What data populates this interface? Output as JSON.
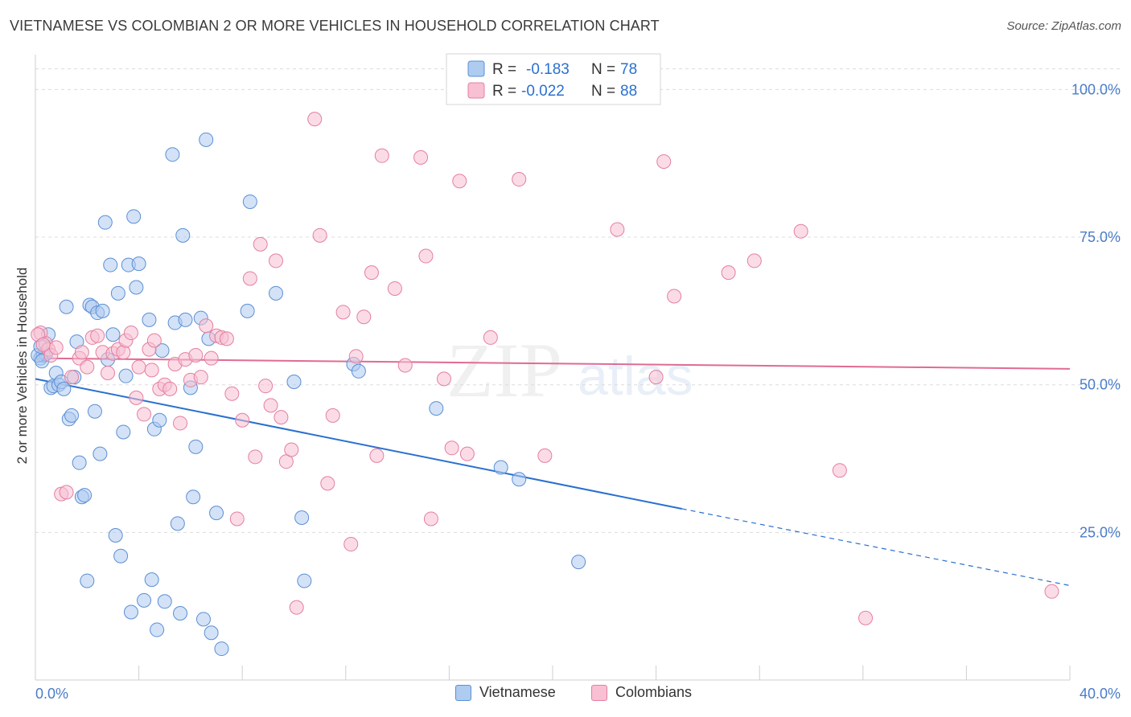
{
  "title": "VIETNAMESE VS COLOMBIAN 2 OR MORE VEHICLES IN HOUSEHOLD CORRELATION CHART",
  "source": "Source: ZipAtlas.com",
  "watermark": {
    "zip": "ZIP",
    "atlas": "atlas"
  },
  "colors": {
    "viet_fill": "#aecbf0",
    "viet_stroke": "#5b8fd4",
    "viet_line": "#2a70cf",
    "col_fill": "#f8c0d2",
    "col_stroke": "#e47fa0",
    "col_line": "#e06b93",
    "r_value": "#2a70cf",
    "grid": "#dcdcdc",
    "axis_text": "#4a7cc8"
  },
  "legend": {
    "rows": [
      {
        "r_label": "R =",
        "r_value": "-0.183",
        "n_label": "N =",
        "n_value": "78"
      },
      {
        "r_label": "R =",
        "r_value": "-0.022",
        "n_label": "N =",
        "n_value": "88"
      }
    ]
  },
  "bottom_legend": [
    "Vietnamese",
    "Colombians"
  ],
  "chart_data": {
    "type": "scatter",
    "title": "VIETNAMESE VS COLOMBIAN 2 OR MORE VEHICLES IN HOUSEHOLD CORRELATION CHART",
    "xlabel": "",
    "ylabel": "2 or more Vehicles in Household",
    "xlim": [
      0,
      40
    ],
    "ylim": [
      0,
      104
    ],
    "x_tick_labels": [
      "0.0%",
      "40.0%"
    ],
    "y_ticks": [
      25,
      50,
      75,
      100
    ],
    "y_tick_labels": [
      "25.0%",
      "50.0%",
      "75.0%",
      "100.0%"
    ],
    "series": [
      {
        "name": "Vietnamese",
        "r": -0.183,
        "n": 78,
        "trend": {
          "x0": 0,
          "y0": 51,
          "x1": 25.0,
          "y1": 29.0,
          "dash_to_x": 40,
          "dash_to_y": 16
        },
        "points": [
          [
            0.2,
            54.5
          ],
          [
            0.3,
            55.0
          ],
          [
            0.4,
            55.2
          ],
          [
            0.5,
            58.5
          ],
          [
            0.6,
            49.5
          ],
          [
            0.7,
            49.8
          ],
          [
            0.8,
            52.0
          ],
          [
            0.9,
            50.0
          ],
          [
            1.0,
            50.5
          ],
          [
            1.1,
            49.3
          ],
          [
            1.2,
            63.2
          ],
          [
            1.3,
            44.2
          ],
          [
            1.4,
            44.8
          ],
          [
            1.5,
            51.3
          ],
          [
            1.6,
            57.3
          ],
          [
            1.7,
            36.8
          ],
          [
            1.8,
            31.0
          ],
          [
            1.9,
            31.3
          ],
          [
            2.0,
            16.8
          ],
          [
            2.1,
            63.5
          ],
          [
            2.2,
            63.2
          ],
          [
            2.3,
            45.5
          ],
          [
            2.4,
            62.2
          ],
          [
            2.5,
            38.3
          ],
          [
            2.6,
            62.5
          ],
          [
            2.7,
            77.5
          ],
          [
            2.8,
            54.3
          ],
          [
            2.9,
            70.3
          ],
          [
            3.0,
            58.5
          ],
          [
            3.1,
            24.5
          ],
          [
            3.2,
            65.5
          ],
          [
            3.3,
            21.0
          ],
          [
            3.4,
            42.0
          ],
          [
            3.5,
            51.5
          ],
          [
            3.6,
            70.3
          ],
          [
            3.7,
            11.5
          ],
          [
            3.8,
            78.5
          ],
          [
            3.9,
            66.5
          ],
          [
            4.0,
            70.5
          ],
          [
            4.2,
            13.5
          ],
          [
            4.4,
            61.0
          ],
          [
            4.5,
            17.0
          ],
          [
            4.6,
            42.5
          ],
          [
            4.7,
            8.5
          ],
          [
            4.8,
            44.0
          ],
          [
            4.9,
            55.8
          ],
          [
            5.0,
            13.3
          ],
          [
            5.3,
            89.0
          ],
          [
            5.4,
            60.5
          ],
          [
            5.5,
            26.5
          ],
          [
            5.6,
            11.3
          ],
          [
            5.7,
            75.3
          ],
          [
            5.8,
            61.0
          ],
          [
            6.0,
            49.5
          ],
          [
            6.1,
            31.0
          ],
          [
            6.2,
            39.5
          ],
          [
            6.4,
            61.3
          ],
          [
            6.5,
            10.3
          ],
          [
            6.6,
            91.5
          ],
          [
            6.7,
            57.8
          ],
          [
            6.8,
            8.0
          ],
          [
            7.0,
            28.3
          ],
          [
            7.2,
            5.3
          ],
          [
            8.2,
            62.5
          ],
          [
            8.3,
            81.0
          ],
          [
            9.3,
            65.5
          ],
          [
            10.0,
            50.5
          ],
          [
            10.3,
            27.5
          ],
          [
            10.4,
            16.8
          ],
          [
            12.3,
            53.5
          ],
          [
            12.5,
            52.3
          ],
          [
            15.5,
            46.0
          ],
          [
            18.0,
            36.0
          ],
          [
            18.7,
            34.0
          ],
          [
            21.0,
            20.0
          ],
          [
            0.1,
            55.0
          ],
          [
            0.2,
            56.5
          ],
          [
            0.25,
            54.0
          ]
        ]
      },
      {
        "name": "Colombians",
        "r": -0.022,
        "n": 88,
        "trend": {
          "x0": 0,
          "y0": 54.5,
          "x1": 40,
          "y1": 52.7
        },
        "points": [
          [
            0.2,
            58.8
          ],
          [
            0.4,
            57.0
          ],
          [
            0.5,
            56.0
          ],
          [
            0.6,
            55.0
          ],
          [
            0.8,
            56.3
          ],
          [
            1.0,
            31.5
          ],
          [
            1.2,
            31.8
          ],
          [
            1.4,
            51.3
          ],
          [
            1.7,
            54.5
          ],
          [
            1.8,
            55.5
          ],
          [
            2.0,
            53.0
          ],
          [
            2.2,
            58.0
          ],
          [
            2.4,
            58.3
          ],
          [
            2.6,
            55.5
          ],
          [
            2.8,
            52.0
          ],
          [
            3.0,
            55.3
          ],
          [
            3.2,
            56.0
          ],
          [
            3.4,
            55.5
          ],
          [
            3.5,
            57.5
          ],
          [
            3.7,
            58.8
          ],
          [
            3.9,
            47.8
          ],
          [
            4.0,
            53.0
          ],
          [
            4.2,
            45.0
          ],
          [
            4.4,
            56.0
          ],
          [
            4.5,
            52.5
          ],
          [
            4.6,
            57.5
          ],
          [
            4.8,
            49.3
          ],
          [
            5.0,
            50.0
          ],
          [
            5.2,
            49.3
          ],
          [
            5.4,
            53.5
          ],
          [
            5.6,
            43.5
          ],
          [
            5.8,
            54.3
          ],
          [
            6.0,
            50.8
          ],
          [
            6.2,
            55.0
          ],
          [
            6.4,
            51.3
          ],
          [
            6.6,
            60.0
          ],
          [
            6.8,
            54.5
          ],
          [
            7.0,
            58.3
          ],
          [
            7.2,
            58.0
          ],
          [
            7.4,
            57.8
          ],
          [
            7.6,
            48.5
          ],
          [
            7.8,
            27.3
          ],
          [
            8.0,
            44.0
          ],
          [
            8.3,
            68.0
          ],
          [
            8.5,
            37.8
          ],
          [
            8.7,
            73.8
          ],
          [
            8.9,
            49.8
          ],
          [
            9.1,
            46.5
          ],
          [
            9.3,
            71.0
          ],
          [
            9.5,
            44.5
          ],
          [
            9.7,
            37.0
          ],
          [
            9.9,
            39.0
          ],
          [
            10.1,
            12.3
          ],
          [
            10.8,
            95.0
          ],
          [
            11.0,
            75.3
          ],
          [
            11.3,
            33.3
          ],
          [
            11.5,
            44.8
          ],
          [
            11.9,
            62.3
          ],
          [
            12.2,
            23.0
          ],
          [
            12.4,
            54.8
          ],
          [
            12.7,
            61.5
          ],
          [
            13.0,
            69.0
          ],
          [
            13.2,
            38.0
          ],
          [
            13.4,
            88.8
          ],
          [
            13.9,
            66.3
          ],
          [
            14.3,
            53.3
          ],
          [
            14.9,
            88.5
          ],
          [
            15.1,
            71.8
          ],
          [
            15.3,
            27.3
          ],
          [
            15.8,
            51.0
          ],
          [
            16.1,
            39.3
          ],
          [
            16.4,
            84.5
          ],
          [
            16.7,
            38.3
          ],
          [
            17.6,
            58.0
          ],
          [
            18.7,
            84.8
          ],
          [
            19.7,
            38.0
          ],
          [
            22.5,
            76.3
          ],
          [
            24.0,
            51.3
          ],
          [
            24.3,
            87.8
          ],
          [
            24.7,
            65.0
          ],
          [
            26.8,
            69.0
          ],
          [
            27.8,
            71.0
          ],
          [
            29.6,
            76.0
          ],
          [
            31.1,
            35.5
          ],
          [
            32.1,
            10.5
          ],
          [
            39.3,
            15.0
          ],
          [
            0.1,
            58.5
          ],
          [
            0.3,
            56.8
          ]
        ]
      }
    ]
  }
}
